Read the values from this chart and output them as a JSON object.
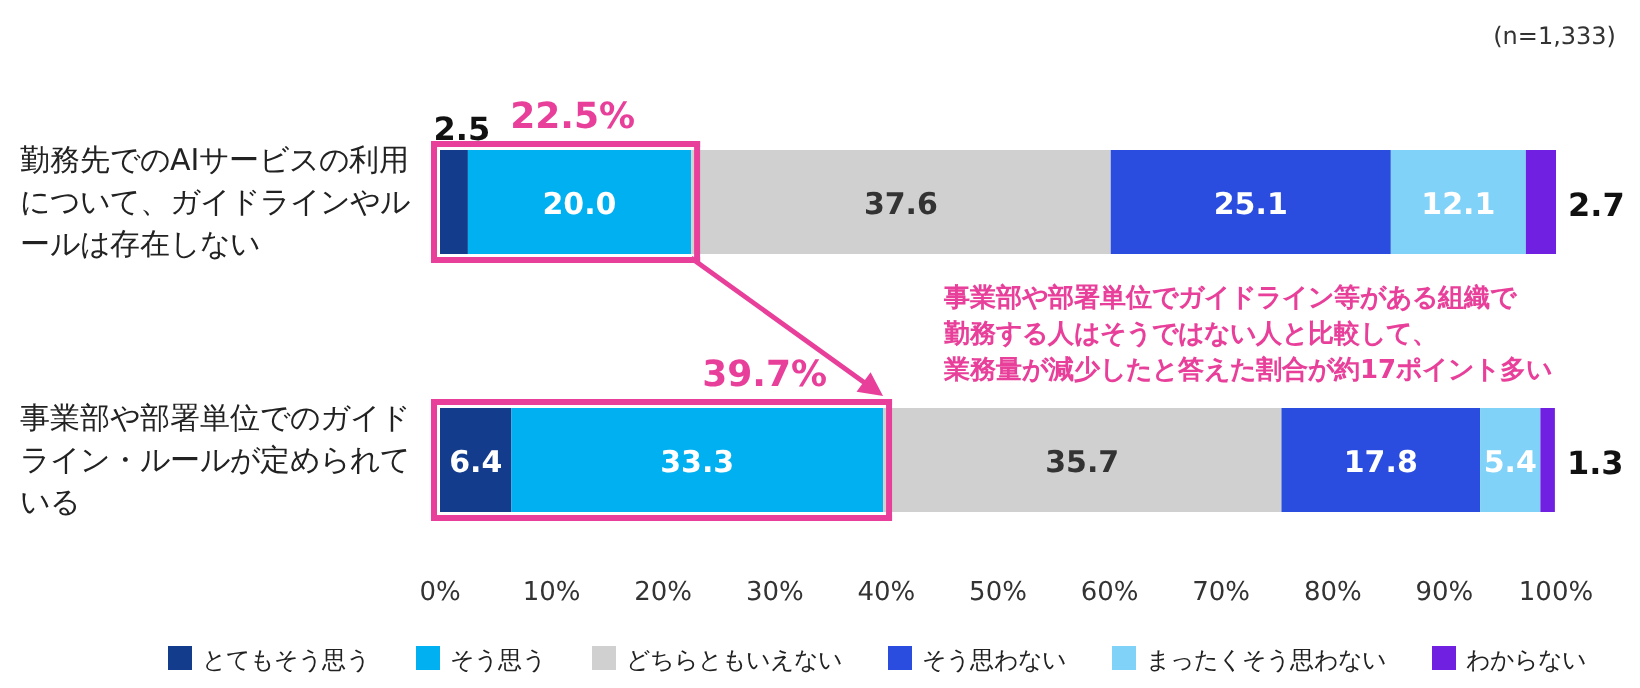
{
  "chart_data": {
    "type": "bar",
    "orientation": "horizontal",
    "stacked": true,
    "categories": [
      "勤務先でのAIサービスの利用について、ガイドラインやルールは存在しない",
      "事業部や部署単位でのガイドライン・ルールが定められている"
    ],
    "series": [
      {
        "name": "とてもそう思う",
        "color": "#143c8c",
        "values": [
          2.5,
          6.4
        ],
        "value_labels": [
          "2.5",
          "6.4"
        ]
      },
      {
        "name": "そう思う",
        "color": "#00b0f0",
        "values": [
          20.0,
          33.3
        ],
        "value_labels": [
          "20.0",
          "33.3"
        ]
      },
      {
        "name": "どちらともいえない",
        "color": "#d0d0d0",
        "values": [
          37.6,
          35.7
        ],
        "value_labels": [
          "37.6",
          "35.7"
        ]
      },
      {
        "name": "そう思わない",
        "color": "#2a4de0",
        "values": [
          25.1,
          17.8
        ],
        "value_labels": [
          "25.1",
          "17.8"
        ]
      },
      {
        "name": "まったくそう思わない",
        "color": "#80d2f8",
        "values": [
          12.1,
          5.4
        ],
        "value_labels": [
          "12.1",
          "5.4"
        ]
      },
      {
        "name": "わからない",
        "color": "#7020e0",
        "values": [
          2.7,
          1.3
        ],
        "value_labels": [
          "2.7",
          "1.3"
        ]
      }
    ],
    "xlim": [
      0,
      100
    ],
    "xticks": [
      {
        "value": 0,
        "label": "0%"
      },
      {
        "value": 10,
        "label": "10%"
      },
      {
        "value": 20,
        "label": "20%"
      },
      {
        "value": 30,
        "label": "30%"
      },
      {
        "value": 40,
        "label": "40%"
      },
      {
        "value": 50,
        "label": "50%"
      },
      {
        "value": 60,
        "label": "60%"
      },
      {
        "value": 70,
        "label": "70%"
      },
      {
        "value": 80,
        "label": "80%"
      },
      {
        "value": 90,
        "label": "90%"
      },
      {
        "value": 100,
        "label": "100%"
      }
    ],
    "legend": "bottom",
    "annotations": [
      "(n=1,333)",
      {
        "text": "22.5%",
        "x": 22.5,
        "y": "勤務先でのAIサービスの利用について、ガイドラインやルールは存在しない"
      },
      {
        "text": "39.7%",
        "x": 39.7,
        "y": "事業部や部署単位でのガイドライン・ルールが定められている"
      },
      "事業部や部署単位でガイドライン等がある組織で",
      "勤務する人はそうではない人と比較して、",
      "業務量が減少したと答えた割合が約17ポイント多い"
    ]
  }
}
